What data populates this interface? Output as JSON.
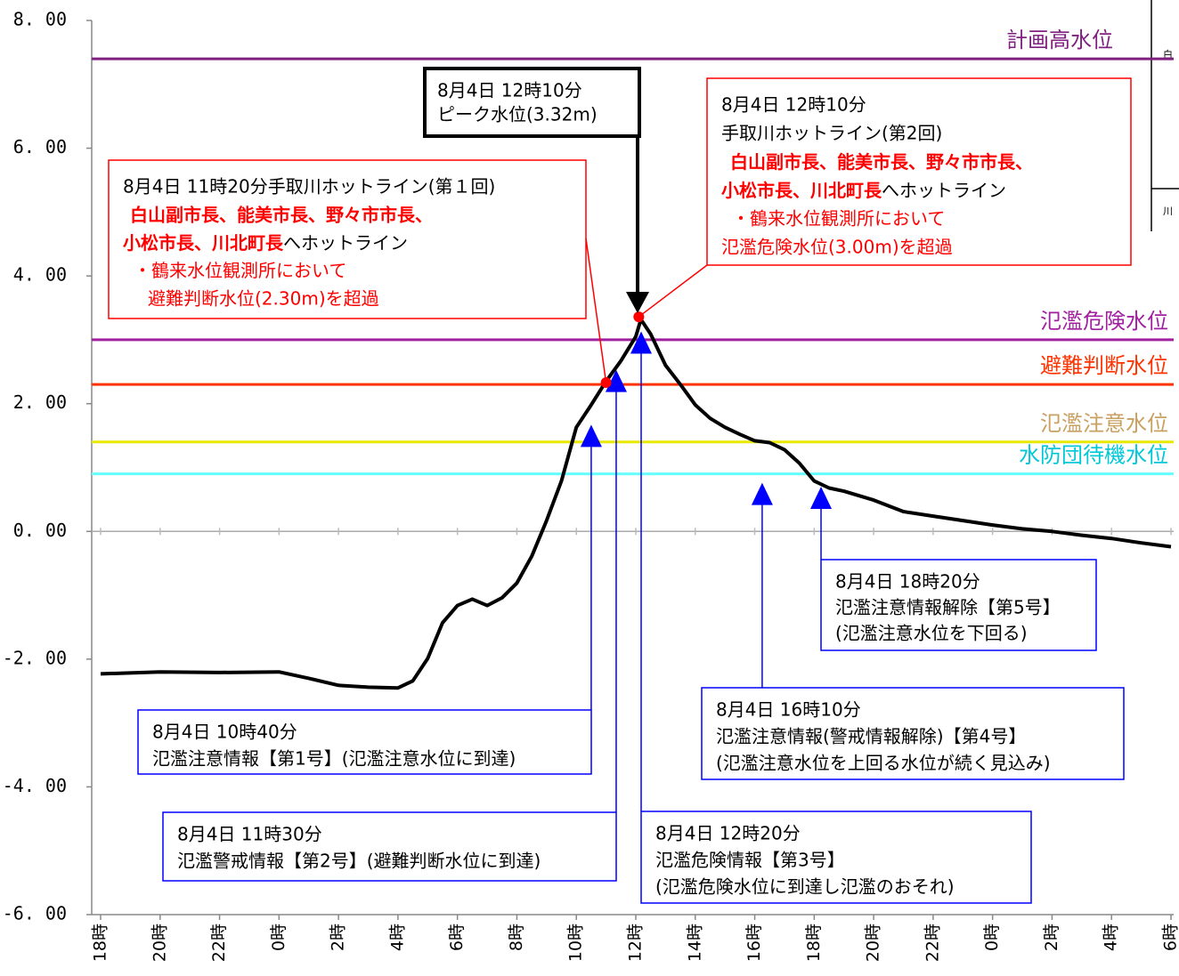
{
  "chart_data": {
    "type": "line",
    "x": [
      0,
      2,
      4,
      6,
      7,
      8,
      9,
      10,
      10.5,
      11,
      11.5,
      12,
      12.5,
      13,
      13.5,
      14,
      14.5,
      15,
      15.5,
      16,
      16.5,
      17,
      17.5,
      18,
      18.17,
      18.5,
      19,
      19.5,
      20,
      20.5,
      21,
      21.5,
      22,
      22.5,
      23,
      23.5,
      24,
      24.5,
      25,
      26,
      27,
      28,
      29,
      30,
      31,
      32,
      33,
      34,
      35,
      36
    ],
    "values": [
      -2.23,
      -2.2,
      -2.21,
      -2.2,
      -2.3,
      -2.41,
      -2.44,
      -2.45,
      -2.34,
      -1.99,
      -1.43,
      -1.16,
      -1.06,
      -1.16,
      -1.04,
      -0.81,
      -0.39,
      0.17,
      0.79,
      1.63,
      1.98,
      2.35,
      2.67,
      3.05,
      3.32,
      3.09,
      2.6,
      2.3,
      1.98,
      1.77,
      1.63,
      1.52,
      1.42,
      1.39,
      1.28,
      1.07,
      0.79,
      0.68,
      0.63,
      0.49,
      0.31,
      0.24,
      0.17,
      0.1,
      0.04,
      0,
      -0.06,
      -0.11,
      -0.18,
      -0.24
    ],
    "color": "#000000",
    "xlim": [
      0,
      36
    ],
    "xticks": [
      {
        "value": 0,
        "label": "18時"
      },
      {
        "value": 2,
        "label": "20時"
      },
      {
        "value": 4,
        "label": "22時"
      },
      {
        "value": 6,
        "label": "0時"
      },
      {
        "value": 8,
        "label": "2時"
      },
      {
        "value": 10,
        "label": "4時"
      },
      {
        "value": 12,
        "label": "6時"
      },
      {
        "value": 14,
        "label": "8時"
      },
      {
        "value": 16,
        "label": "10時"
      },
      {
        "value": 18,
        "label": "12時"
      },
      {
        "value": 20,
        "label": "14時"
      },
      {
        "value": 22,
        "label": "16時"
      },
      {
        "value": 24,
        "label": "18時"
      },
      {
        "value": 26,
        "label": "20時"
      },
      {
        "value": 28,
        "label": "22時"
      },
      {
        "value": 30,
        "label": "0時"
      },
      {
        "value": 32,
        "label": "2時"
      },
      {
        "value": 34,
        "label": "4時"
      },
      {
        "value": 36,
        "label": "6時"
      }
    ],
    "ylim": [
      -6,
      8
    ],
    "yticks": [
      {
        "value": -6,
        "label": "-6. 00"
      },
      {
        "value": -4,
        "label": "-4. 00"
      },
      {
        "value": -2,
        "label": "-2. 00"
      },
      {
        "value": 0,
        "label": "0. 00"
      },
      {
        "value": 2,
        "label": "2. 00"
      },
      {
        "value": 4,
        "label": "4. 00"
      },
      {
        "value": 6,
        "label": "6. 00"
      },
      {
        "value": 8,
        "label": "8. 00"
      }
    ],
    "reference_lines": [
      {
        "name": "計画高水位",
        "value": 7.4,
        "color": "#7f1f7f",
        "label_color": "#7f1f7f"
      },
      {
        "name": "氾濫危険水位",
        "value": 3.0,
        "color": "#a020a0",
        "label_color": "#a020a0"
      },
      {
        "name": "避難判断水位",
        "value": 2.3,
        "color": "#ff3300",
        "label_color": "#ff3300"
      },
      {
        "name": "氾濫注意水位",
        "value": 1.4,
        "color": "#e8e800",
        "label_color": "#c8a060"
      },
      {
        "name": "水防団待機水位",
        "value": 0.9,
        "color": "#66ffff",
        "label_color": "#00c8d8"
      }
    ],
    "peak": {
      "lines": [
        "8月4日 12時10分",
        "ピーク水位(3.32m)"
      ]
    },
    "hotlines": [
      {
        "header": [
          "8月4日 11時20分手取川ホットライン(第１回)"
        ],
        "recipients": [
          "白山副市長、能美市長、野々市市長、",
          "小松市長、川北町長"
        ],
        "action": "へホットライン",
        "details": [
          "・鶴来水位観測所において",
          "避難判断水位(2.30m)を超過"
        ],
        "x": 17.0,
        "y": 2.33
      },
      {
        "header": [
          "8月4日 12時10分",
          "手取川ホットライン(第2回)"
        ],
        "recipients": [
          "白山副市長、能美市長、野々市市長、",
          "小松市長、川北町長"
        ],
        "action": "へホットライン",
        "details": [
          "・鶴来水位観測所において",
          "氾濫危険水位(3.00m)を超過"
        ],
        "x": 18.1,
        "y": 3.36
      }
    ],
    "notices": [
      {
        "lines": [
          "8月4日 10時40分",
          "氾濫注意情報【第1号】(氾濫注意水位に到達)"
        ],
        "x": 16.5,
        "y": 1.49
      },
      {
        "lines": [
          "8月4日 11時30分",
          "氾濫警戒情報【第2号】(避難判断水位に到達)"
        ],
        "x": 17.34,
        "y": 2.35
      },
      {
        "lines": [
          "8月4日 12時20分",
          "氾濫危険情報【第3号】",
          "(氾濫危険水位に到達し氾濫のおそれ)"
        ],
        "x": 18.18,
        "y": 2.95
      },
      {
        "lines": [
          "8月4日 16時10分",
          "氾濫注意情報(警戒情報解除)【第4号】",
          "(氾濫注意水位を上回る水位が続く見込み)"
        ],
        "x": 22.25,
        "y": 0.58
      },
      {
        "lines": [
          "8月4日 18時20分",
          "氾濫注意情報解除【第5号】",
          "(氾濫注意水位を下回る)"
        ],
        "x": 24.23,
        "y": 0.52
      }
    ],
    "inset": {
      "texts": [
        "白",
        "川"
      ]
    }
  }
}
